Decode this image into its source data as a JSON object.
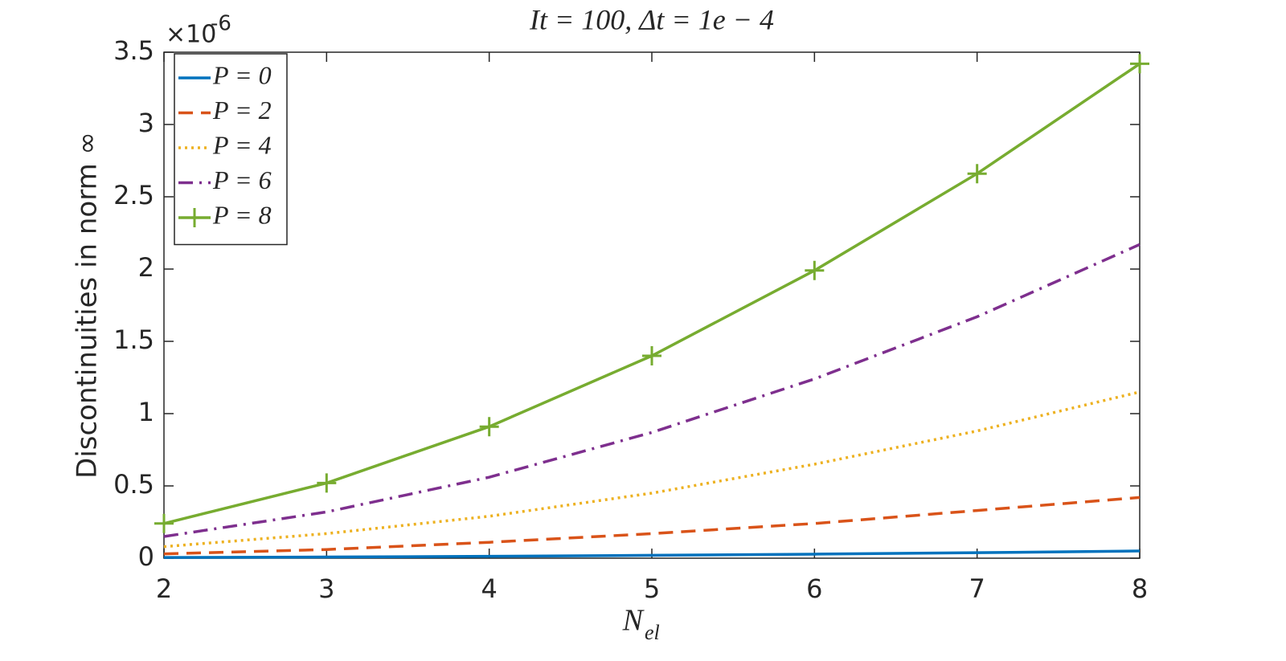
{
  "chart_data": {
    "type": "line",
    "title": "It = 100, Δt = 1e − 4",
    "x_label": "N",
    "x_label_subscript": "el",
    "y_label": "Discontinuities in norm ∞",
    "y_exponent_base": "×10",
    "y_exponent": "-6",
    "x": [
      2,
      3,
      4,
      5,
      6,
      7,
      8
    ],
    "xlim": [
      2,
      8
    ],
    "xticks": [
      2,
      3,
      4,
      5,
      6,
      7,
      8
    ],
    "ylim": [
      0,
      3.5
    ],
    "yticks": [
      0,
      0.5,
      1,
      1.5,
      2,
      2.5,
      3,
      3.5
    ],
    "grid": false,
    "legend_position": "upper-left",
    "series": [
      {
        "name": "P = 0",
        "color": "#0072BD",
        "dash": "solid",
        "marker": "none",
        "values": [
          0.005,
          0.008,
          0.013,
          0.02,
          0.028,
          0.038,
          0.05
        ]
      },
      {
        "name": "P = 2",
        "color": "#D95319",
        "dash": "dashed",
        "marker": "none",
        "values": [
          0.03,
          0.06,
          0.11,
          0.17,
          0.24,
          0.33,
          0.42
        ]
      },
      {
        "name": "P = 4",
        "color": "#EDB120",
        "dash": "dotted",
        "marker": "none",
        "values": [
          0.08,
          0.17,
          0.29,
          0.45,
          0.65,
          0.88,
          1.15
        ]
      },
      {
        "name": "P = 6",
        "color": "#7E2F8E",
        "dash": "dashdot",
        "marker": "none",
        "values": [
          0.15,
          0.32,
          0.56,
          0.87,
          1.24,
          1.67,
          2.17
        ]
      },
      {
        "name": "P = 8",
        "color": "#77AC30",
        "dash": "solid",
        "marker": "plus",
        "values": [
          0.24,
          0.52,
          0.91,
          1.4,
          1.99,
          2.66,
          3.42
        ]
      }
    ]
  }
}
